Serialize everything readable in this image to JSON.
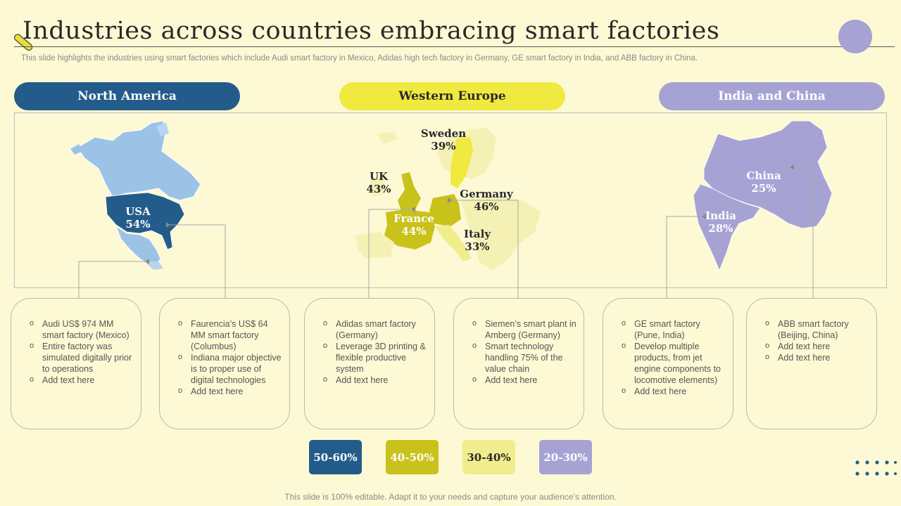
{
  "title": "Industries across countries embracing smart factories",
  "subtitle": "This slide highlights the industries using smart factories which include Audi smart factory in Mexico, Adidas high tech factory in Germany, GE smart factory in India, and ABB factory in China.",
  "regions": {
    "north_america": "North America",
    "western_europe": "Western Europe",
    "india_china": "India and China"
  },
  "map_labels": {
    "usa": {
      "name": "USA",
      "value": "54%"
    },
    "sweden": {
      "name": "Sweden",
      "value": "39%"
    },
    "uk": {
      "name": "UK",
      "value": "43%"
    },
    "germany": {
      "name": "Germany",
      "value": "46%"
    },
    "france": {
      "name": "France",
      "value": "44%"
    },
    "italy": {
      "name": "Italy",
      "value": "33%"
    },
    "china": {
      "name": "China",
      "value": "25%"
    },
    "india": {
      "name": "India",
      "value": "28%"
    }
  },
  "cards": [
    {
      "items": [
        "Audi US$ 974 MM smart factory (Mexico)",
        "Entire factory was simulated digitally prior to operations",
        "Add text here"
      ]
    },
    {
      "items": [
        "Faurencia’s US$ 64 MM smart factory (Columbus)",
        "Indiana major objective is to proper use of digital technologies",
        "Add text here"
      ]
    },
    {
      "items": [
        "Adidas smart factory (Germany)",
        "Leverage 3D printing & flexible productive system",
        "Add text here"
      ]
    },
    {
      "items": [
        "Siemen’s smart plant in Amberg (Germany)",
        "Smart technology handling 75% of the value chain",
        "Add text here"
      ]
    },
    {
      "items": [
        "GE smart factory (Pune, India)",
        "Develop multiple products, from jet engine components to locomotive elements)",
        "Add text here"
      ]
    },
    {
      "items": [
        "ABB smart factory (Beijing, China)",
        "Add text here",
        "Add text here"
      ]
    }
  ],
  "legend": [
    {
      "label": "50-60%",
      "color": "#235c8a"
    },
    {
      "label": "40-50%",
      "color": "#c9c21a"
    },
    {
      "label": "30-40%",
      "color": "#f2ed8c"
    },
    {
      "label": "20-30%",
      "color": "#a6a3d4"
    }
  ],
  "footer": "This slide is 100% editable. Adapt it to your needs and capture your audience’s attention.",
  "colors": {
    "background": "#fdf9d4",
    "navy": "#235c8a",
    "light_blue": "#9cc3e6",
    "olive": "#c9c21a",
    "yellow": "#f0e93f",
    "pale_yellow": "#f2ed8c",
    "lavender": "#a6a3d4"
  }
}
